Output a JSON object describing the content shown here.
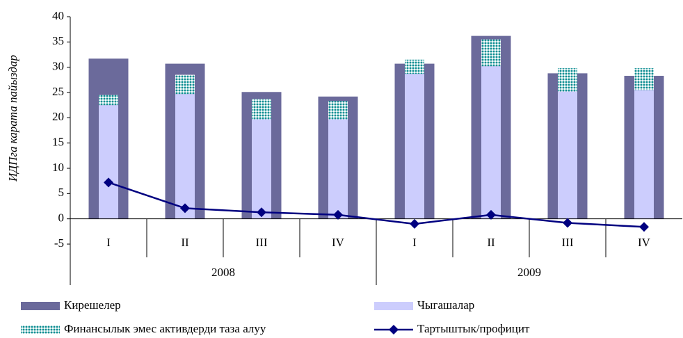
{
  "chart_data": {
    "type": "bar",
    "y_axis_label": "ИДПга карата пайыздар",
    "categories": [
      "I",
      "II",
      "III",
      "IV",
      "I",
      "II",
      "III",
      "IV"
    ],
    "year_groups": [
      "2008",
      "2009"
    ],
    "ylim": [
      -5,
      40
    ],
    "yticks": [
      -5,
      0,
      5,
      10,
      15,
      20,
      25,
      30,
      35,
      40
    ],
    "series": [
      {
        "name": "Кирешелер",
        "color": "#6b6a9b",
        "role": "wide",
        "values": [
          31.7,
          30.7,
          25.1,
          24.2,
          30.7,
          36.2,
          28.8,
          28.3
        ]
      },
      {
        "name": "Чыгашалар",
        "color": "#cccdfd",
        "role": "narrow",
        "values": [
          22.5,
          24.7,
          19.7,
          19.7,
          28.7,
          30.2,
          25.2,
          25.5
        ]
      },
      {
        "name": "Финансылык эмес активдерди таза алуу",
        "color": "#0f8f93",
        "role": "stacked",
        "values": [
          2.0,
          3.8,
          4.0,
          3.6,
          2.8,
          5.3,
          4.6,
          4.3
        ]
      },
      {
        "name": "Тартыштык/профицит",
        "color": "#000080",
        "role": "line",
        "values": [
          7.2,
          2.1,
          1.3,
          0.8,
          -1.0,
          0.8,
          -0.8,
          -1.6
        ]
      }
    ]
  }
}
